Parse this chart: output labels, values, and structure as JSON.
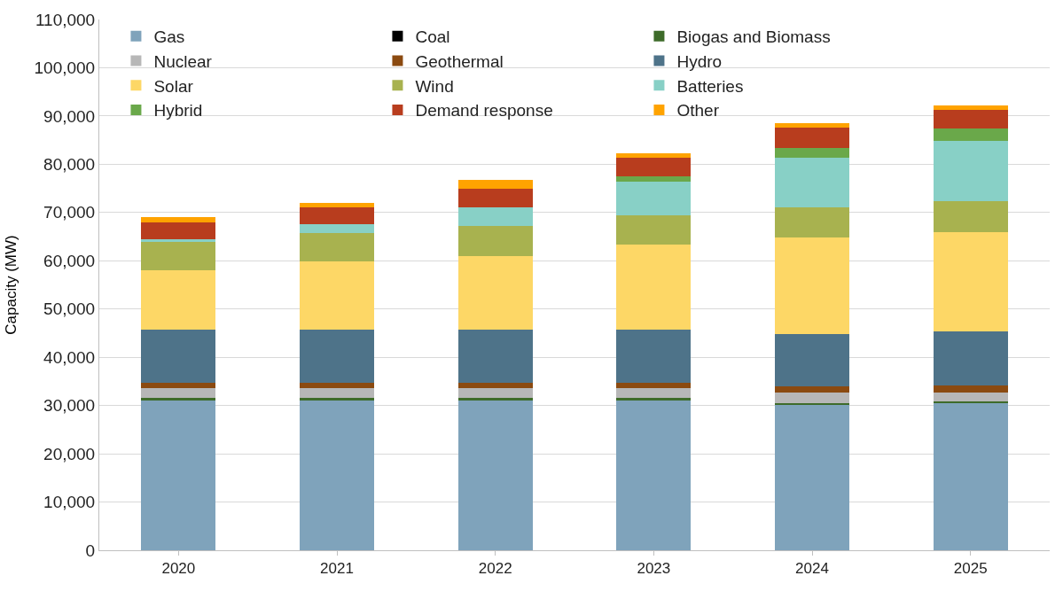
{
  "chart_data": {
    "type": "bar",
    "stacked": true,
    "ylabel": "Capacity (MW)",
    "categories": [
      "2020",
      "2021",
      "2022",
      "2023",
      "2024",
      "2025"
    ],
    "series": [
      {
        "name": "Gas",
        "color": "#7fa3bb",
        "values": [
          31100,
          31100,
          31100,
          31100,
          30200,
          30500
        ]
      },
      {
        "name": "Coal",
        "color": "#000000",
        "values": [
          0,
          0,
          0,
          0,
          0,
          0
        ]
      },
      {
        "name": "Biogas and Biomass",
        "color": "#3e6b2a",
        "values": [
          500,
          500,
          500,
          500,
          300,
          300
        ]
      },
      {
        "name": "Nuclear",
        "color": "#b7b7b7",
        "values": [
          2000,
          2000,
          2000,
          2000,
          2200,
          1900
        ]
      },
      {
        "name": "Geothermal",
        "color": "#8b4a10",
        "values": [
          1100,
          1100,
          1100,
          1100,
          1200,
          1500
        ]
      },
      {
        "name": "Hydro",
        "color": "#4e7389",
        "values": [
          11100,
          11100,
          11100,
          11100,
          11000,
          11100
        ]
      },
      {
        "name": "Solar",
        "color": "#fdd766",
        "values": [
          12300,
          14000,
          15100,
          17500,
          20000,
          20700
        ]
      },
      {
        "name": "Wind",
        "color": "#a8b24f",
        "values": [
          5800,
          5900,
          6300,
          6200,
          6200,
          6300
        ]
      },
      {
        "name": "Batteries",
        "color": "#88d0c6",
        "values": [
          500,
          1800,
          3900,
          6900,
          10300,
          12600
        ]
      },
      {
        "name": "Hybrid",
        "color": "#6aa84a",
        "values": [
          0,
          0,
          0,
          1100,
          2000,
          2500
        ]
      },
      {
        "name": "Demand response",
        "color": "#b83d1e",
        "values": [
          3600,
          3600,
          3900,
          3900,
          4200,
          3900
        ]
      },
      {
        "name": "Other",
        "color": "#ffa300",
        "values": [
          1000,
          900,
          1800,
          800,
          900,
          800
        ]
      }
    ],
    "ylim": [
      0,
      110000
    ],
    "yticks": [
      0,
      {
        "value": 10000,
        "label": "10,000"
      },
      {
        "value": 20000,
        "label": "20,000"
      },
      {
        "value": 30000,
        "label": "30,000"
      },
      {
        "value": 40000,
        "label": "40,000"
      },
      {
        "value": 50000,
        "label": "50,000"
      },
      {
        "value": 60000,
        "label": "60,000"
      },
      {
        "value": 70000,
        "label": "70,000"
      },
      {
        "value": 80000,
        "label": "80,000"
      },
      {
        "value": 90000,
        "label": "90,000"
      },
      {
        "value": 100000,
        "label": "100,000"
      },
      {
        "value": 110000,
        "label": "110,000"
      }
    ],
    "grid": "y",
    "legend": "top"
  }
}
